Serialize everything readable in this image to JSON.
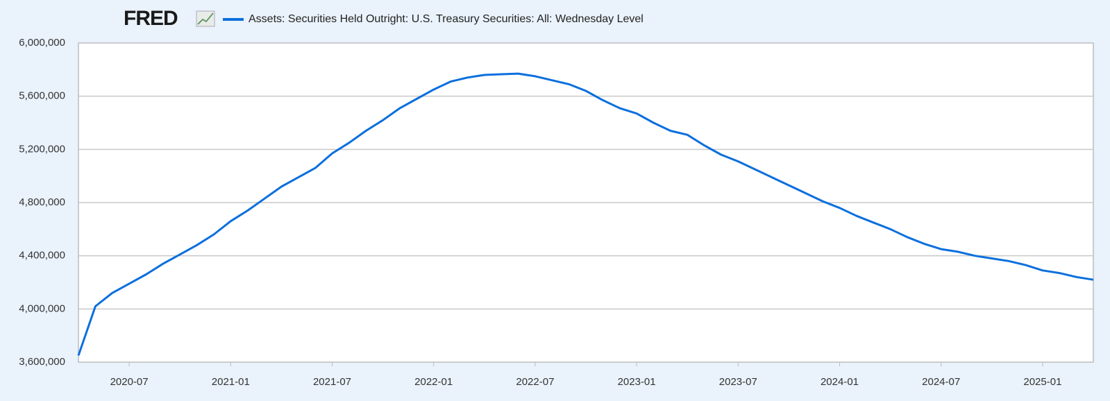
{
  "chart_data": {
    "type": "line",
    "logo": "FRED",
    "x": [
      "2020-04",
      "2020-05",
      "2020-06",
      "2020-07",
      "2020-08",
      "2020-09",
      "2020-10",
      "2020-11",
      "2020-12",
      "2021-01",
      "2021-02",
      "2021-03",
      "2021-04",
      "2021-05",
      "2021-06",
      "2021-07",
      "2021-08",
      "2021-09",
      "2021-10",
      "2021-11",
      "2021-12",
      "2022-01",
      "2022-02",
      "2022-03",
      "2022-04",
      "2022-05",
      "2022-06",
      "2022-07",
      "2022-08",
      "2022-09",
      "2022-10",
      "2022-11",
      "2022-12",
      "2023-01",
      "2023-02",
      "2023-03",
      "2023-04",
      "2023-05",
      "2023-06",
      "2023-07",
      "2023-08",
      "2023-09",
      "2023-10",
      "2023-11",
      "2023-12",
      "2024-01",
      "2024-02",
      "2024-03",
      "2024-04",
      "2024-05",
      "2024-06",
      "2024-07",
      "2024-08",
      "2024-09",
      "2024-10",
      "2024-11",
      "2024-12",
      "2025-01",
      "2025-02",
      "2025-03",
      "2025-04"
    ],
    "series": [
      {
        "name": "Assets: Securities Held Outright: U.S. Treasury Securities: All: Wednesday Level",
        "color": "#0b6fdd",
        "values": [
          3650000,
          4020000,
          4120000,
          4190000,
          4260000,
          4340000,
          4410000,
          4480000,
          4560000,
          4660000,
          4740000,
          4830000,
          4920000,
          4990000,
          5060000,
          5170000,
          5250000,
          5340000,
          5420000,
          5510000,
          5580000,
          5650000,
          5710000,
          5740000,
          5760000,
          5765000,
          5770000,
          5750000,
          5720000,
          5690000,
          5640000,
          5570000,
          5510000,
          5470000,
          5400000,
          5340000,
          5310000,
          5230000,
          5160000,
          5110000,
          5050000,
          4990000,
          4930000,
          4870000,
          4810000,
          4760000,
          4700000,
          4650000,
          4600000,
          4540000,
          4490000,
          4450000,
          4430000,
          4400000,
          4380000,
          4360000,
          4330000,
          4290000,
          4270000,
          4240000,
          4220000
        ]
      }
    ],
    "xlim": [
      "2020-04",
      "2025-04"
    ],
    "xticks": [
      "2020-07",
      "2021-01",
      "2021-07",
      "2022-01",
      "2022-07",
      "2023-01",
      "2023-07",
      "2024-01",
      "2024-07",
      "2025-01"
    ],
    "ylim": [
      3600000,
      6000000
    ],
    "yticks": [
      {
        "value": 3600000,
        "label": "3,600,000"
      },
      {
        "value": 4000000,
        "label": "4,000,000"
      },
      {
        "value": 4400000,
        "label": "4,400,000"
      },
      {
        "value": 4800000,
        "label": "4,800,000"
      },
      {
        "value": 5200000,
        "label": "5,200,000"
      },
      {
        "value": 5600000,
        "label": "5,600,000"
      },
      {
        "value": 6000000,
        "label": "6,000,000"
      }
    ],
    "grid": true
  }
}
